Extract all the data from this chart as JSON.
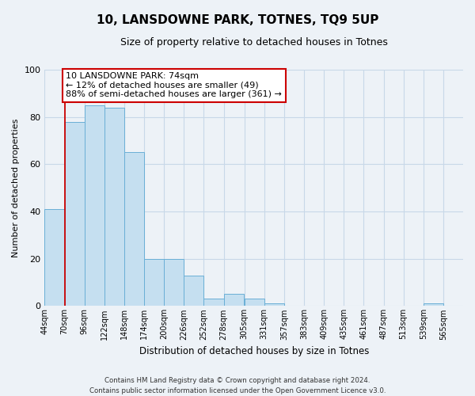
{
  "title": "10, LANSDOWNE PARK, TOTNES, TQ9 5UP",
  "subtitle": "Size of property relative to detached houses in Totnes",
  "bar_values": [
    41,
    78,
    85,
    84,
    65,
    20,
    20,
    13,
    3,
    5,
    3,
    1,
    0,
    0,
    0,
    0,
    0,
    0,
    0,
    1,
    0
  ],
  "bin_labels": [
    "44sqm",
    "70sqm",
    "96sqm",
    "122sqm",
    "148sqm",
    "174sqm",
    "200sqm",
    "226sqm",
    "252sqm",
    "278sqm",
    "305sqm",
    "331sqm",
    "357sqm",
    "383sqm",
    "409sqm",
    "435sqm",
    "461sqm",
    "487sqm",
    "513sqm",
    "539sqm",
    "565sqm"
  ],
  "bin_starts": [
    44,
    70,
    96,
    122,
    148,
    174,
    200,
    226,
    252,
    278,
    305,
    331,
    357,
    383,
    409,
    435,
    461,
    487,
    513,
    539,
    565
  ],
  "bin_width": 26,
  "bar_color": "#c5dff0",
  "bar_edge_color": "#6aafd6",
  "bar_edge_width": 0.7,
  "marker_line_x": 70,
  "marker_line_color": "#cc0000",
  "ylabel": "Number of detached properties",
  "xlabel": "Distribution of detached houses by size in Totnes",
  "ylim": [
    0,
    100
  ],
  "xlim": [
    44,
    591
  ],
  "yticks": [
    0,
    20,
    40,
    60,
    80,
    100
  ],
  "annotation_text": "10 LANSDOWNE PARK: 74sqm\n← 12% of detached houses are smaller (49)\n88% of semi-detached houses are larger (361) →",
  "annotation_box_color": "#ffffff",
  "annotation_box_edgecolor": "#cc0000",
  "footer_line1": "Contains HM Land Registry data © Crown copyright and database right 2024.",
  "footer_line2": "Contains public sector information licensed under the Open Government Licence v3.0.",
  "grid_color": "#c8d8e8",
  "background_color": "#edf2f7"
}
